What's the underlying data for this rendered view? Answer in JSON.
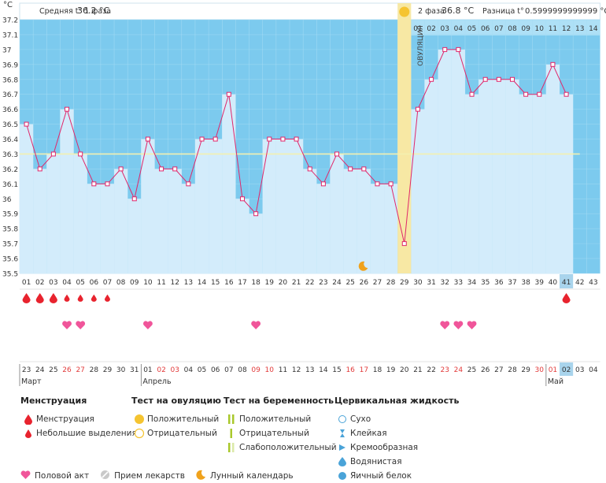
{
  "units": "°C",
  "summary": {
    "phase1_label": "Средняя t° 1 фаза",
    "phase1_value": "36.2 °C",
    "phase2_label": "2 фаза",
    "phase2_value": "36.8 °C",
    "diff_label": "Разница t°",
    "diff_value": "0.5999999999999 °C"
  },
  "ovulation_label": "ОВУЛЯЦИЯ",
  "chart_data": {
    "type": "area",
    "ylim": [
      35.5,
      37.2
    ],
    "yticks": [
      "37.2",
      "37.1",
      "37",
      "36.9",
      "36.8",
      "36.7",
      "36.6",
      "36.5",
      "36.4",
      "36.3",
      "36.2",
      "36.1",
      "36",
      "35.9",
      "35.8",
      "35.7",
      "35.6",
      "35.5"
    ],
    "cycle_days": [
      "01",
      "02",
      "03",
      "04",
      "05",
      "06",
      "07",
      "08",
      "09",
      "10",
      "11",
      "12",
      "13",
      "14",
      "15",
      "16",
      "17",
      "18",
      "19",
      "20",
      "21",
      "22",
      "23",
      "24",
      "25",
      "26",
      "27",
      "28",
      "29",
      "30",
      "31",
      "32",
      "33",
      "34",
      "35",
      "36",
      "37",
      "38",
      "39",
      "40",
      "41",
      "42",
      "43"
    ],
    "temperatures": [
      36.5,
      36.2,
      36.3,
      36.6,
      36.3,
      36.1,
      36.1,
      36.2,
      36.0,
      36.4,
      36.2,
      36.2,
      36.1,
      36.4,
      36.4,
      36.7,
      36.0,
      35.9,
      36.4,
      36.4,
      36.4,
      36.2,
      36.1,
      36.3,
      36.2,
      36.2,
      36.1,
      36.1,
      35.7,
      36.6,
      36.8,
      37.0,
      37.0,
      36.7,
      36.8,
      36.8,
      36.8,
      36.7,
      36.7,
      36.9,
      36.7
    ],
    "coverline": 36.3,
    "ovulation_day": 29,
    "phase2_days": [
      "01",
      "02",
      "03",
      "04",
      "05",
      "06",
      "07",
      "08",
      "09",
      "10",
      "11",
      "12",
      "13",
      "14"
    ],
    "calendar_days": [
      "23",
      "24",
      "25",
      "26",
      "27",
      "28",
      "29",
      "30",
      "31",
      "01",
      "02",
      "03",
      "04",
      "05",
      "06",
      "07",
      "08",
      "09",
      "10",
      "11",
      "12",
      "13",
      "14",
      "15",
      "16",
      "17",
      "18",
      "19",
      "20",
      "21",
      "22",
      "23",
      "24",
      "25",
      "26",
      "27",
      "28",
      "29",
      "30",
      "01",
      "02",
      "03",
      "04"
    ],
    "weekend_days": [
      4,
      5,
      11,
      12,
      18,
      19,
      25,
      26,
      32,
      33,
      39,
      40
    ],
    "months": [
      {
        "label": "Март",
        "start": 1
      },
      {
        "label": "Апрель",
        "start": 10
      },
      {
        "label": "Май",
        "start": 40
      }
    ],
    "today_day": 41,
    "moon_day": 26,
    "menstruation": [
      {
        "day": 1,
        "type": "big"
      },
      {
        "day": 2,
        "type": "big"
      },
      {
        "day": 3,
        "type": "big"
      },
      {
        "day": 4,
        "type": "small"
      },
      {
        "day": 5,
        "type": "small"
      },
      {
        "day": 6,
        "type": "small"
      },
      {
        "day": 7,
        "type": "small"
      },
      {
        "day": 41,
        "type": "big"
      }
    ],
    "intercourse_days": [
      4,
      5,
      10,
      18,
      32,
      33,
      34
    ]
  },
  "legend": {
    "menstruation": {
      "title": "Менструация",
      "items": [
        "Менструация",
        "Небольшие выделения"
      ]
    },
    "ovulation_test": {
      "title": "Тест на овуляцию",
      "items": [
        "Положительный",
        "Отрицательный"
      ]
    },
    "pregnancy_test": {
      "title": "Тест на беременность",
      "items": [
        "Положительный",
        "Отрицательный",
        "Слабоположительный"
      ]
    },
    "cervical": {
      "title": "Цервикальная жидкость",
      "items": [
        "Сухо",
        "Клейкая",
        "Кремообразная",
        "Водянистая",
        "Яичный белок"
      ]
    },
    "bottom": [
      "Половой акт",
      "Прием лекарств",
      "Лунный календарь"
    ]
  },
  "colors": {
    "plot_bg": "#7ccaee",
    "fill": "#d3ecfb",
    "line": "#e0266a",
    "ovulation": "#f7e8a4",
    "coverline": "#f3f0b0",
    "drop": "#e8232e",
    "heart": "#f0559a",
    "weekend": "#e23b3b",
    "today": "#a9d4ec"
  }
}
